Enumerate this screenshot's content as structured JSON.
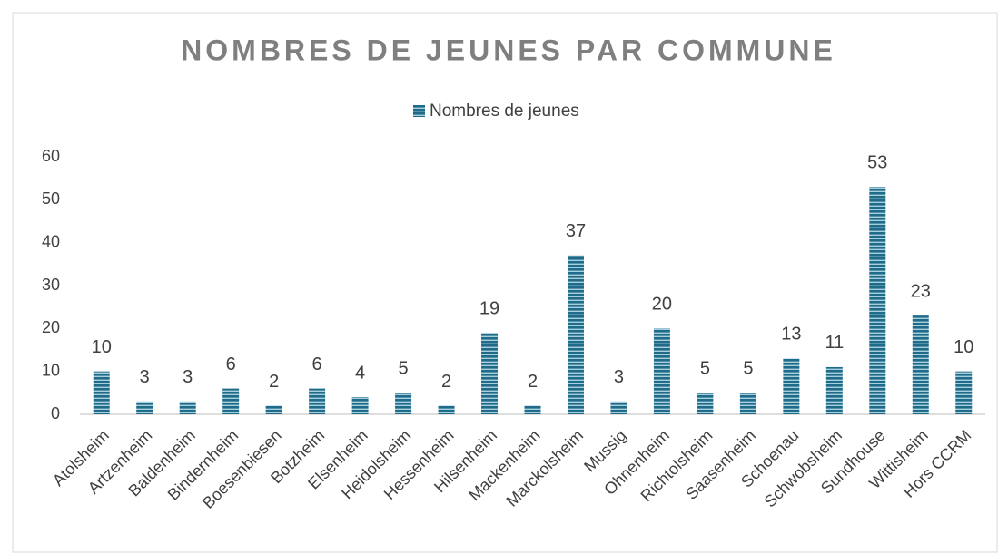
{
  "chart_data": {
    "type": "bar",
    "title": "NOMBRES DE JEUNES PAR COMMUNE",
    "categories": [
      "Atolsheim",
      "Artzenheim",
      "Baldenheim",
      "Bindernheim",
      "Boesenbiesen",
      "Botzheim",
      "Elsenheim",
      "Heidolsheim",
      "Hessenheim",
      "Hilsenheim",
      "Mackenheim",
      "Marckolsheim",
      "Mussig",
      "Ohnenheim",
      "Richtolsheim",
      "Saasenheim",
      "Schoenau",
      "Schwobsheim",
      "Sundhouse",
      "Wittisheim",
      "Hors CCRM"
    ],
    "series": [
      {
        "name": "Nombres de jeunes",
        "color": "#1f6b8a",
        "values": [
          10,
          3,
          3,
          6,
          2,
          6,
          4,
          5,
          2,
          19,
          2,
          37,
          3,
          20,
          5,
          5,
          13,
          11,
          53,
          23,
          10
        ]
      }
    ],
    "ylim": [
      0,
      60
    ],
    "yticks": [
      0,
      10,
      20,
      30,
      40,
      50,
      60
    ],
    "grid": false,
    "legend": "top"
  }
}
